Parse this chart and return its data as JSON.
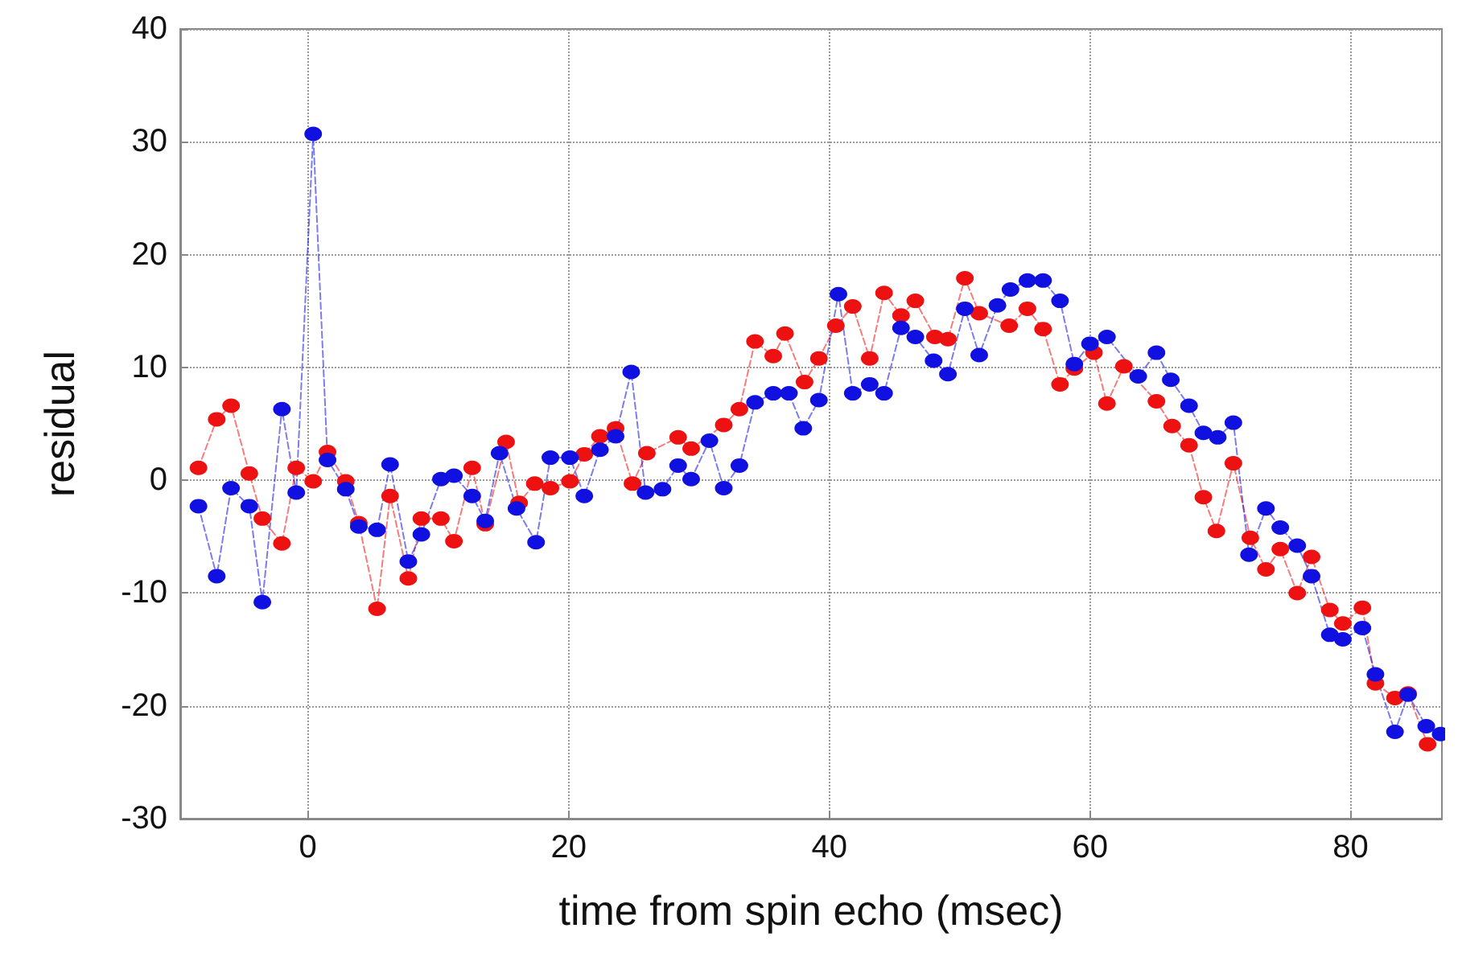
{
  "chart_data": {
    "type": "line",
    "xlabel": "time from spin echo (msec)",
    "ylabel": "residual",
    "xlim": [
      -9.8,
      87
    ],
    "ylim": [
      -30,
      40
    ],
    "xticks": [
      0,
      20,
      40,
      60,
      80
    ],
    "yticks": [
      -30,
      -20,
      -10,
      0,
      10,
      20,
      30,
      40
    ],
    "grid": true,
    "marker": "circle",
    "line_style": "dashed",
    "series": [
      {
        "color": "#ee1111",
        "x": [
          -8.4,
          -7.0,
          -5.9,
          -4.5,
          -3.5,
          -2.0,
          -0.9,
          0.4,
          1.5,
          2.9,
          3.9,
          5.3,
          6.3,
          7.7,
          8.7,
          10.2,
          11.2,
          12.6,
          13.6,
          15.2,
          16.2,
          17.4,
          18.6,
          20.1,
          21.2,
          22.4,
          23.6,
          24.9,
          26.0,
          28.4,
          29.4,
          31.9,
          33.1,
          34.3,
          35.7,
          36.6,
          38.1,
          39.2,
          40.5,
          41.8,
          43.1,
          44.2,
          45.5,
          46.6,
          48.1,
          49.1,
          50.4,
          51.5,
          53.8,
          55.2,
          56.4,
          57.7,
          58.8,
          60.3,
          61.3,
          62.6,
          65.1,
          66.3,
          67.6,
          68.7,
          69.7,
          71.0,
          72.3,
          73.5,
          74.6,
          75.9,
          77.0,
          78.4,
          79.4,
          80.9,
          81.9,
          83.4,
          84.4,
          85.9
        ],
        "values": [
          1.1,
          5.4,
          6.6,
          0.6,
          -3.4,
          -5.6,
          1.1,
          -0.1,
          2.5,
          -0.1,
          -3.8,
          -11.4,
          -1.4,
          -8.7,
          -3.4,
          -3.4,
          -5.4,
          1.1,
          -3.9,
          3.4,
          -2.0,
          -0.3,
          -0.7,
          -0.1,
          2.3,
          3.9,
          4.6,
          -0.3,
          2.4,
          3.8,
          2.8,
          4.9,
          6.3,
          12.3,
          11.0,
          13.0,
          8.7,
          10.8,
          13.7,
          15.4,
          10.8,
          16.6,
          14.6,
          15.9,
          12.7,
          12.5,
          17.9,
          14.8,
          13.7,
          15.2,
          13.4,
          8.5,
          9.9,
          11.3,
          6.8,
          10.1,
          7.0,
          4.8,
          3.1,
          -1.5,
          -4.5,
          1.5,
          -5.1,
          -7.9,
          -6.1,
          -10.0,
          -6.8,
          -11.5,
          -12.7,
          -11.3,
          -18.0,
          -19.3,
          -18.9,
          -23.4
        ]
      },
      {
        "color": "#1010e0",
        "x": [
          -8.4,
          -7.0,
          -5.9,
          -4.5,
          -3.5,
          -2.0,
          -0.9,
          0.4,
          1.5,
          2.9,
          3.9,
          5.3,
          6.3,
          7.7,
          8.7,
          10.2,
          11.2,
          12.6,
          13.6,
          14.7,
          16.0,
          17.5,
          18.6,
          20.1,
          21.2,
          22.4,
          23.6,
          24.8,
          25.9,
          27.2,
          28.4,
          29.4,
          30.8,
          31.9,
          33.1,
          34.3,
          35.7,
          36.9,
          38.0,
          39.2,
          40.7,
          41.8,
          43.1,
          44.2,
          45.5,
          46.6,
          48.0,
          49.1,
          50.4,
          51.5,
          52.9,
          53.9,
          55.2,
          56.4,
          57.7,
          58.8,
          60.0,
          61.3,
          63.7,
          65.1,
          66.2,
          67.6,
          68.7,
          69.8,
          71.0,
          72.2,
          73.5,
          74.6,
          75.9,
          77.0,
          78.4,
          79.4,
          80.9,
          81.9,
          83.4,
          84.4,
          85.8,
          86.9
        ],
        "values": [
          -2.3,
          -8.5,
          -0.7,
          -2.3,
          -10.8,
          6.3,
          -1.1,
          30.7,
          1.8,
          -0.8,
          -4.1,
          -4.4,
          1.4,
          -7.2,
          -4.8,
          0.1,
          0.4,
          -1.4,
          -3.6,
          2.4,
          -2.5,
          -5.5,
          2.0,
          2.0,
          -1.4,
          2.7,
          3.9,
          9.6,
          -1.1,
          -0.8,
          1.3,
          0.1,
          3.5,
          -0.7,
          1.3,
          6.9,
          7.7,
          7.7,
          4.6,
          7.1,
          16.5,
          7.7,
          8.5,
          7.7,
          13.5,
          12.7,
          10.6,
          9.4,
          15.2,
          11.1,
          15.5,
          16.9,
          17.7,
          17.7,
          15.9,
          10.3,
          12.1,
          12.7,
          9.2,
          11.3,
          8.9,
          6.6,
          4.2,
          3.8,
          5.1,
          -6.6,
          -2.5,
          -4.2,
          -5.8,
          -8.5,
          -13.7,
          -14.1,
          -13.1,
          -17.2,
          -22.3,
          -19.0,
          -21.8,
          -22.5
        ]
      }
    ]
  }
}
